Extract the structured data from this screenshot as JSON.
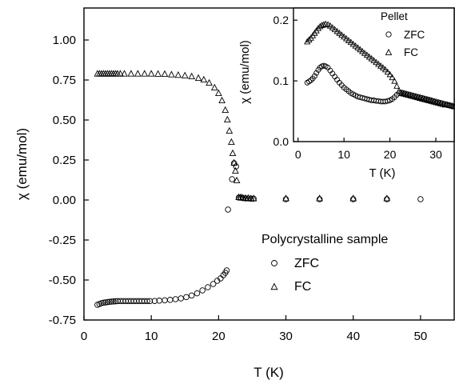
{
  "chart_data": [
    {
      "type": "scatter",
      "title": "",
      "xlabel": "T (K)",
      "ylabel": "χ (emu/mol)",
      "xlim": [
        0,
        55
      ],
      "ylim": [
        -0.75,
        1.2
      ],
      "xticks": [
        0,
        10,
        20,
        30,
        40,
        50
      ],
      "yticks": [
        -0.75,
        -0.5,
        -0.25,
        0.0,
        0.25,
        0.5,
        0.75,
        1.0
      ],
      "xtick_labels": [
        "0",
        "10",
        "20",
        "30",
        "40",
        "50"
      ],
      "ytick_labels": [
        "-0.75",
        "-0.50",
        "-0.25",
        "0.00",
        "0.25",
        "0.50",
        "0.75",
        "1.00"
      ],
      "grid": false,
      "legend": {
        "title": "Polycrystalline sample",
        "placement": "lower-right",
        "entries": [
          {
            "label": "ZFC",
            "marker": "circle"
          },
          {
            "label": "FC",
            "marker": "triangle"
          }
        ]
      },
      "series": [
        {
          "name": "ZFC",
          "marker": "circle",
          "x": [
            2,
            2.3,
            2.6,
            2.9,
            3.2,
            3.5,
            3.8,
            4.1,
            4.4,
            4.7,
            5.0,
            5.4,
            5.8,
            6.2,
            6.6,
            7.0,
            7.4,
            7.8,
            8.2,
            8.6,
            9.0,
            9.4,
            9.8,
            10.5,
            11.2,
            12.0,
            12.8,
            13.6,
            14.4,
            15.2,
            16.0,
            16.8,
            17.6,
            18.4,
            19.2,
            19.8,
            20.3,
            20.7,
            21.0,
            21.2,
            21.4,
            22.0,
            22.3,
            22.6,
            23.0,
            23.3,
            23.6,
            24.0,
            24.4,
            24.8,
            25.2,
            30,
            35,
            40,
            45,
            50
          ],
          "y": [
            -0.655,
            -0.65,
            -0.645,
            -0.642,
            -0.64,
            -0.638,
            -0.636,
            -0.635,
            -0.634,
            -0.633,
            -0.632,
            -0.632,
            -0.632,
            -0.632,
            -0.632,
            -0.632,
            -0.632,
            -0.632,
            -0.632,
            -0.632,
            -0.632,
            -0.632,
            -0.632,
            -0.631,
            -0.629,
            -0.627,
            -0.624,
            -0.62,
            -0.615,
            -0.607,
            -0.597,
            -0.583,
            -0.565,
            -0.545,
            -0.525,
            -0.505,
            -0.49,
            -0.47,
            -0.455,
            -0.44,
            -0.06,
            0.13,
            0.23,
            0.21,
            0.015,
            0.015,
            0.012,
            0.01,
            0.01,
            0.008,
            0.008,
            0.005,
            0.005,
            0.005,
            0.005,
            0.005
          ]
        },
        {
          "name": "FC",
          "marker": "triangle",
          "x": [
            2,
            2.3,
            2.6,
            2.9,
            3.2,
            3.5,
            3.8,
            4.1,
            4.4,
            4.7,
            5.0,
            5.4,
            6.0,
            7.0,
            8.0,
            9.0,
            10.0,
            11.0,
            12.0,
            13.0,
            14.0,
            15.0,
            16.0,
            17.0,
            17.8,
            18.6,
            19.4,
            20.0,
            20.5,
            21.0,
            21.3,
            21.6,
            21.9,
            22.1,
            22.3,
            22.5,
            22.7,
            23.0,
            23.3,
            23.6,
            24.0,
            24.4,
            24.8,
            25.2,
            30,
            35,
            40,
            45
          ],
          "y": [
            0.787,
            0.787,
            0.787,
            0.787,
            0.787,
            0.787,
            0.787,
            0.787,
            0.787,
            0.787,
            0.787,
            0.787,
            0.787,
            0.787,
            0.787,
            0.787,
            0.787,
            0.786,
            0.785,
            0.782,
            0.779,
            0.776,
            0.77,
            0.76,
            0.75,
            0.73,
            0.7,
            0.665,
            0.62,
            0.56,
            0.5,
            0.43,
            0.36,
            0.29,
            0.23,
            0.18,
            0.12,
            0.015,
            0.015,
            0.012,
            0.01,
            0.01,
            0.008,
            0.008,
            0.008,
            0.008,
            0.008,
            0.008
          ]
        }
      ]
    },
    {
      "type": "scatter",
      "title": "",
      "xlabel": "T (K)",
      "ylabel": "χ (emu/mol)",
      "xlim": [
        -1,
        34
      ],
      "ylim": [
        0,
        0.22
      ],
      "xticks": [
        0,
        10,
        20,
        30
      ],
      "yticks": [
        0.0,
        0.1,
        0.2
      ],
      "xtick_labels": [
        "0",
        "10",
        "20",
        "30"
      ],
      "ytick_labels": [
        "0.0",
        "0.1",
        "0.2"
      ],
      "grid": false,
      "legend": {
        "title": "Pellet",
        "placement": "top-right",
        "entries": [
          {
            "label": "ZFC",
            "marker": "circle"
          },
          {
            "label": "FC",
            "marker": "triangle"
          }
        ]
      },
      "series": [
        {
          "name": "ZFC",
          "marker": "circle",
          "x": [
            2.0,
            2.4,
            2.8,
            3.2,
            3.6,
            4.0,
            4.4,
            4.8,
            5.2,
            5.6,
            6.0,
            6.5,
            7.0,
            7.5,
            8.0,
            8.5,
            9.0,
            9.5,
            10,
            10.5,
            11,
            11.5,
            12,
            12.5,
            13,
            13.5,
            14,
            14.5,
            15,
            15.5,
            16,
            16.5,
            17,
            17.5,
            18,
            18.5,
            19,
            19.5,
            20,
            20.5,
            21,
            21.5,
            22,
            22.5,
            23,
            23.5,
            24,
            24.5,
            25,
            25.5,
            26,
            26.5,
            27,
            27.5,
            28,
            28.5,
            29,
            29.5,
            30,
            30.5,
            31,
            31.5,
            32,
            32.5,
            33,
            33.5,
            34
          ],
          "y": [
            0.097,
            0.099,
            0.101,
            0.104,
            0.108,
            0.113,
            0.118,
            0.122,
            0.124,
            0.125,
            0.124,
            0.122,
            0.117,
            0.112,
            0.107,
            0.102,
            0.097,
            0.093,
            0.089,
            0.086,
            0.083,
            0.08,
            0.078,
            0.076,
            0.074,
            0.073,
            0.072,
            0.071,
            0.07,
            0.069,
            0.068,
            0.068,
            0.067,
            0.067,
            0.066,
            0.066,
            0.066,
            0.067,
            0.068,
            0.07,
            0.073,
            0.077,
            0.08,
            0.081,
            0.08,
            0.079,
            0.078,
            0.077,
            0.076,
            0.075,
            0.074,
            0.073,
            0.072,
            0.071,
            0.07,
            0.069,
            0.068,
            0.067,
            0.066,
            0.065,
            0.064,
            0.063,
            0.062,
            0.061,
            0.06,
            0.059,
            0.058
          ]
        },
        {
          "name": "FC",
          "marker": "triangle",
          "x": [
            2.0,
            2.4,
            2.8,
            3.2,
            3.6,
            4.0,
            4.4,
            4.8,
            5.2,
            5.6,
            6.0,
            6.5,
            7.0,
            7.5,
            8.0,
            8.5,
            9.0,
            9.5,
            10,
            10.5,
            11,
            11.5,
            12,
            12.5,
            13,
            13.5,
            14,
            14.5,
            15,
            15.5,
            16,
            16.5,
            17,
            17.5,
            18,
            18.5,
            19,
            19.5,
            20,
            20.5,
            21,
            21.5,
            22,
            22.5,
            23,
            23.5,
            24,
            24.5,
            25,
            25.5,
            26,
            26.5,
            27,
            27.5,
            28,
            28.5,
            29,
            29.5,
            30,
            30.5,
            31,
            31.5,
            32,
            32.5,
            33,
            33.5,
            34
          ],
          "y": [
            0.164,
            0.167,
            0.17,
            0.174,
            0.178,
            0.182,
            0.186,
            0.189,
            0.191,
            0.192,
            0.193,
            0.192,
            0.19,
            0.187,
            0.184,
            0.181,
            0.178,
            0.175,
            0.172,
            0.169,
            0.166,
            0.163,
            0.16,
            0.157,
            0.154,
            0.151,
            0.148,
            0.145,
            0.142,
            0.139,
            0.136,
            0.133,
            0.13,
            0.127,
            0.124,
            0.121,
            0.118,
            0.114,
            0.11,
            0.105,
            0.099,
            0.091,
            0.083,
            0.079,
            0.078,
            0.077,
            0.076,
            0.075,
            0.074,
            0.073,
            0.072,
            0.071,
            0.07,
            0.069,
            0.068,
            0.067,
            0.066,
            0.065,
            0.064,
            0.063,
            0.062,
            0.061,
            0.06,
            0.06,
            0.059,
            0.058,
            0.057
          ]
        }
      ]
    }
  ]
}
